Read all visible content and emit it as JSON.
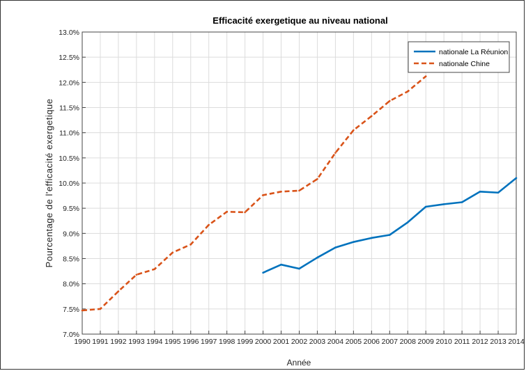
{
  "chart_data": {
    "type": "line",
    "title": "Efficacité exergetique au niveau national",
    "xlabel": "Année",
    "ylabel": "Pourcentage de l'efficacité exergetique",
    "x": [
      1990,
      1991,
      1992,
      1993,
      1994,
      1995,
      1996,
      1997,
      1998,
      1999,
      2000,
      2001,
      2002,
      2003,
      2004,
      2005,
      2006,
      2007,
      2008,
      2009,
      2010,
      2011,
      2012,
      2013,
      2014
    ],
    "xticks": [
      "1990",
      "1991",
      "1992",
      "1993",
      "1994",
      "1995",
      "1996",
      "1997",
      "1998",
      "1999",
      "2000",
      "2001",
      "2002",
      "2003",
      "2004",
      "2005",
      "2006",
      "2007",
      "2008",
      "2009",
      "2010",
      "2011",
      "2012",
      "2013",
      "2014"
    ],
    "yticks": [
      "7.0%",
      "7.5%",
      "8.0%",
      "8.5%",
      "9.0%",
      "9.5%",
      "10.0%",
      "10.5%",
      "11.0%",
      "11.5%",
      "12.0%",
      "12.5%",
      "13.0%"
    ],
    "xlim": [
      1990,
      2014
    ],
    "ylim": [
      7.0,
      13.0
    ],
    "grid": true,
    "legend_position": "top-right",
    "series": [
      {
        "name": "nationale La Réunion",
        "color": "#0072BD",
        "style": "solid",
        "x": [
          2000,
          2001,
          2002,
          2003,
          2004,
          2005,
          2006,
          2007,
          2008,
          2009,
          2010,
          2011,
          2012,
          2013,
          2014
        ],
        "values": [
          8.22,
          8.38,
          8.3,
          8.52,
          8.72,
          8.83,
          8.91,
          8.97,
          9.22,
          9.53,
          9.58,
          9.62,
          9.83,
          9.81,
          10.1
        ]
      },
      {
        "name": "nationale Chine",
        "color": "#D95319",
        "style": "dashed",
        "x": [
          1990,
          1991,
          1992,
          1993,
          1994,
          1995,
          1996,
          1997,
          1998,
          1999,
          2000,
          2001,
          2002,
          2003,
          2004,
          2005,
          2006,
          2007,
          2008,
          2009
        ],
        "values": [
          7.47,
          7.5,
          7.85,
          8.18,
          8.29,
          8.62,
          8.78,
          9.17,
          9.43,
          9.42,
          9.76,
          9.83,
          9.85,
          10.08,
          10.6,
          11.05,
          11.33,
          11.63,
          11.82,
          12.12
        ]
      }
    ]
  }
}
